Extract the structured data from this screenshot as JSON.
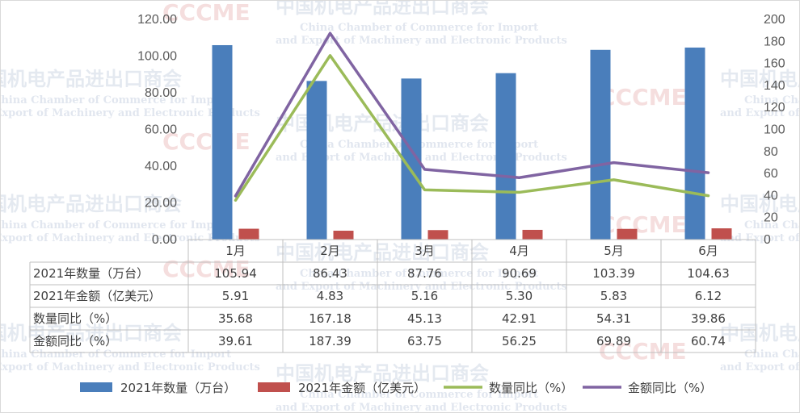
{
  "chart_data": {
    "type": "bar",
    "categories": [
      "1月",
      "2月",
      "3月",
      "4月",
      "5月",
      "6月"
    ],
    "series": [
      {
        "name": "2021年数量（万台）",
        "kind": "bar",
        "axis": "left",
        "color": "#4a7ebb",
        "values": [
          105.94,
          86.43,
          87.76,
          90.69,
          103.39,
          104.63
        ],
        "labels": [
          "105.94",
          "86.43",
          "87.76",
          "90.69",
          "103.39",
          "104.63"
        ]
      },
      {
        "name": "2021年金额（亿美元）",
        "kind": "bar",
        "axis": "left",
        "color": "#c0504d",
        "values": [
          5.91,
          4.83,
          5.16,
          5.3,
          5.83,
          6.12
        ],
        "labels": [
          "5.91",
          "4.83",
          "5.16",
          "5.30",
          "5.83",
          "6.12"
        ]
      },
      {
        "name": "数量同比（%）",
        "kind": "line",
        "axis": "right",
        "color": "#9bbb59",
        "values": [
          35.68,
          167.18,
          45.13,
          42.91,
          54.31,
          39.86
        ],
        "labels": [
          "35.68",
          "167.18",
          "45.13",
          "42.91",
          "54.31",
          "39.86"
        ]
      },
      {
        "name": "金额同比（%）",
        "kind": "line",
        "axis": "right",
        "color": "#8064a2",
        "values": [
          39.61,
          187.39,
          63.75,
          56.25,
          69.89,
          60.74
        ],
        "labels": [
          "39.61",
          "187.39",
          "63.75",
          "56.25",
          "69.89",
          "60.74"
        ]
      }
    ],
    "ylim": [
      0,
      120
    ],
    "y2lim": [
      0,
      200
    ],
    "yticks": [
      "0.00",
      "20.00",
      "40.00",
      "60.00",
      "80.00",
      "100.00",
      "120.00"
    ],
    "y2ticks": [
      "0",
      "20",
      "40",
      "60",
      "80",
      "100",
      "120",
      "140",
      "160",
      "180",
      "200"
    ],
    "grid": false,
    "data_table": true,
    "legend_position": "bottom"
  },
  "watermark": {
    "chinese": "中国机电产品进出口商会",
    "english_line1": "China Chamber of Commerce for Import",
    "english_line2": "and Export of Machinery and Electronic Products",
    "logo": "CCCME"
  }
}
